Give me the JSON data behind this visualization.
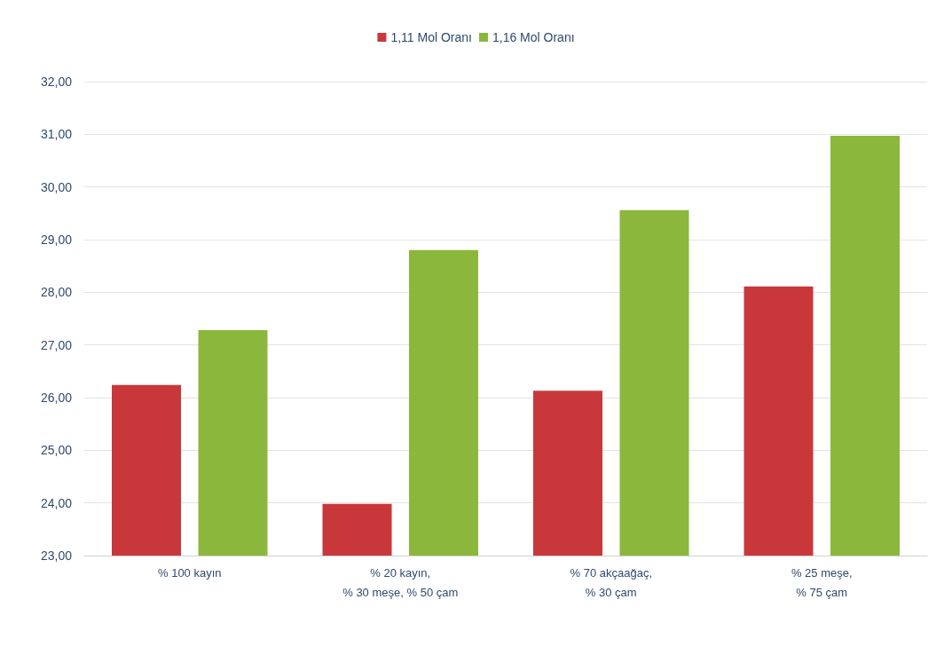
{
  "chart_data": {
    "type": "bar",
    "categories": [
      "% 100 kayın",
      "% 20 kayın,\n% 30 meşe, % 50 çam",
      "% 70 akçaağaç,\n% 30 çam",
      "% 25 meşe,\n% 75 çam"
    ],
    "series": [
      {
        "name": "1,11 Mol Oranı",
        "color": "#c8383a",
        "values": [
          26.24,
          23.98,
          26.13,
          28.11
        ]
      },
      {
        "name": "1,16 Mol Oranı",
        "color": "#8bb83c",
        "values": [
          27.28,
          28.8,
          29.56,
          30.97
        ]
      }
    ],
    "ylim": [
      23,
      32
    ],
    "yticks": [
      {
        "value": 23,
        "label": "23,00"
      },
      {
        "value": 24,
        "label": "24,00"
      },
      {
        "value": 25,
        "label": "25,00"
      },
      {
        "value": 26,
        "label": "26,00"
      },
      {
        "value": 27,
        "label": "27,00"
      },
      {
        "value": 28,
        "label": "28,00"
      },
      {
        "value": 29,
        "label": "29,00"
      },
      {
        "value": 30,
        "label": "30,00"
      },
      {
        "value": 31,
        "label": "31,00"
      },
      {
        "value": 32,
        "label": "32,00"
      }
    ],
    "grid": "y",
    "legend": "top"
  }
}
